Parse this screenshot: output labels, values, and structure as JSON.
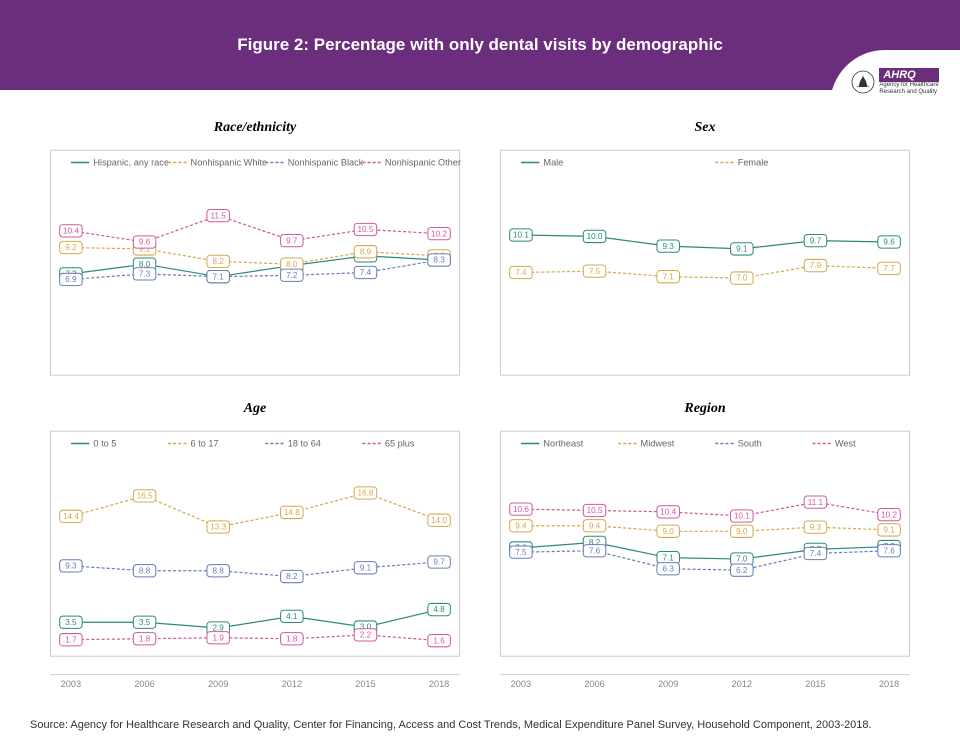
{
  "header": {
    "title": "Figure 2: Percentage with only dental visits by demographic"
  },
  "logo": {
    "agency_l1": "Agency for Healthcare",
    "agency_l2": "Research and Quality",
    "abbr": "AHRQ"
  },
  "source": "Source: Agency for Healthcare Research and Quality, Center for Financing, Access and Cost Trends, Medical Expenditure Panel Survey, Household Component, 2003-2018.",
  "years": [
    "2003",
    "2006",
    "2009",
    "2012",
    "2015",
    "2018"
  ],
  "chart_common": {
    "border_color": "#cccccc",
    "axis_text_color": "#888888",
    "legend_text_color": "#666666"
  },
  "panels": [
    {
      "key": "race",
      "title": "Race/ethnicity",
      "ylim": [
        0,
        14
      ],
      "show_x_axis": false,
      "series": [
        {
          "label": "Hispanic, any race",
          "color": "#2d8a7a",
          "dash": false,
          "values": [
            7.3,
            8.0,
            7.1,
            7.9,
            8.6,
            8.3
          ]
        },
        {
          "label": "Nonhispanic White",
          "color": "#d9a84e",
          "dash": true,
          "values": [
            9.2,
            9.1,
            8.2,
            8.0,
            8.9,
            8.6
          ]
        },
        {
          "label": "Nonhispanic Black",
          "color": "#6b7db8",
          "dash": true,
          "values": [
            6.9,
            7.3,
            7.1,
            7.2,
            7.4,
            8.3
          ]
        },
        {
          "label": "Nonhispanic Other",
          "color": "#d15a9e",
          "dash": true,
          "values": [
            10.4,
            9.6,
            11.5,
            9.7,
            10.5,
            10.2
          ]
        }
      ]
    },
    {
      "key": "sex",
      "title": "Sex",
      "ylim": [
        0,
        14
      ],
      "show_x_axis": false,
      "series": [
        {
          "label": "Male",
          "color": "#2d8a7a",
          "dash": false,
          "values": [
            10.1,
            10.0,
            9.3,
            9.1,
            9.7,
            9.6
          ]
        },
        {
          "label": "Female",
          "color": "#d9a84e",
          "dash": true,
          "values": [
            7.4,
            7.5,
            7.1,
            7.0,
            7.9,
            7.7
          ]
        }
      ]
    },
    {
      "key": "age",
      "title": "Age",
      "ylim": [
        0,
        20
      ],
      "show_x_axis": true,
      "series": [
        {
          "label": "0 to 5",
          "color": "#2d8a7a",
          "dash": false,
          "values": [
            3.5,
            3.5,
            2.9,
            4.1,
            3.0,
            4.8
          ]
        },
        {
          "label": "6 to 17",
          "color": "#d9a84e",
          "dash": true,
          "values": [
            14.4,
            16.5,
            13.3,
            14.8,
            16.8,
            14.0
          ]
        },
        {
          "label": "18 to 64",
          "color": "#6b7db8",
          "dash": true,
          "values": [
            9.3,
            8.8,
            8.8,
            8.2,
            9.1,
            9.7
          ]
        },
        {
          "label": "65 plus",
          "color": "#d15a9e",
          "dash": true,
          "values": [
            1.7,
            1.8,
            1.9,
            1.8,
            2.2,
            1.6
          ]
        }
      ]
    },
    {
      "key": "region",
      "title": "Region",
      "ylim": [
        0,
        14
      ],
      "show_x_axis": true,
      "series": [
        {
          "label": "Northeast",
          "color": "#2d8a7a",
          "dash": false,
          "values": [
            7.8,
            8.2,
            7.1,
            7.0,
            7.7,
            7.9
          ]
        },
        {
          "label": "Midwest",
          "color": "#d9a84e",
          "dash": true,
          "values": [
            9.4,
            9.4,
            9.0,
            9.0,
            9.3,
            9.1
          ]
        },
        {
          "label": "South",
          "color": "#6b7db8",
          "dash": true,
          "values": [
            7.5,
            7.6,
            6.3,
            6.2,
            7.4,
            7.6
          ]
        },
        {
          "label": "West",
          "color": "#d15a9e",
          "dash": true,
          "values": [
            10.6,
            10.5,
            10.4,
            10.1,
            11.1,
            10.2
          ]
        }
      ]
    }
  ]
}
